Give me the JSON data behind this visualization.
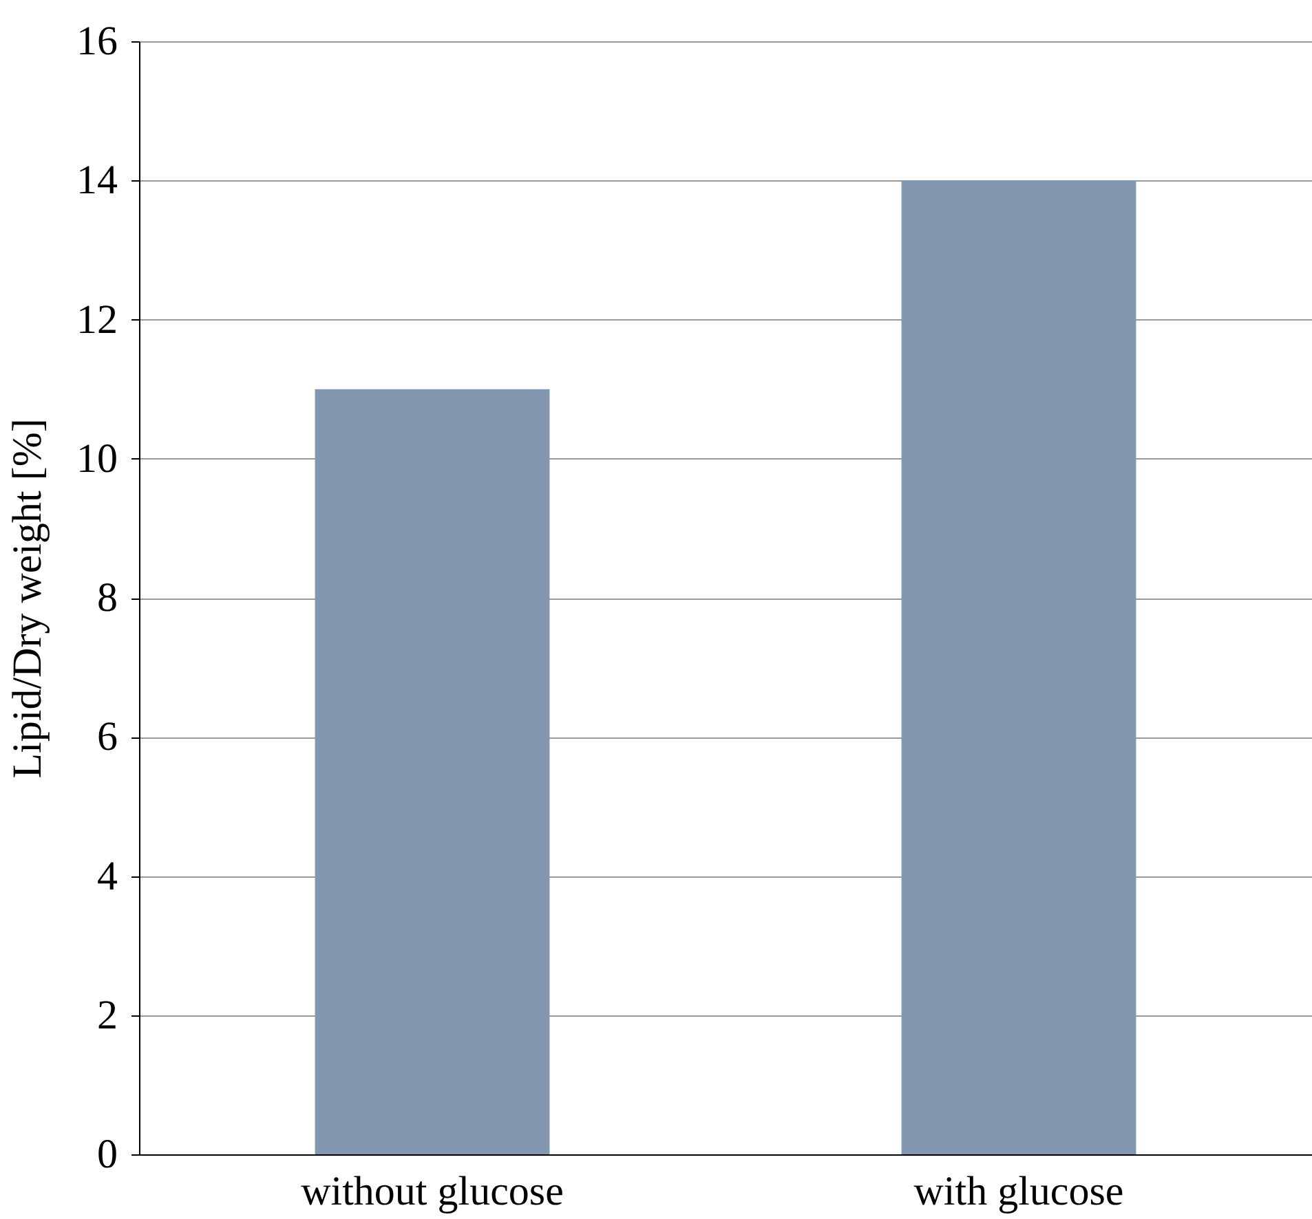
{
  "chart_data": {
    "type": "bar",
    "ylabel": "Lipid/Dry weight [%]",
    "categories": [
      "without glucose",
      "with glucose"
    ],
    "values": [
      11,
      14
    ],
    "color": "#8497b0",
    "ylim": [
      0,
      16
    ],
    "yticks": [
      0,
      2,
      4,
      6,
      8,
      10,
      12,
      14,
      16
    ],
    "grid": "y"
  }
}
